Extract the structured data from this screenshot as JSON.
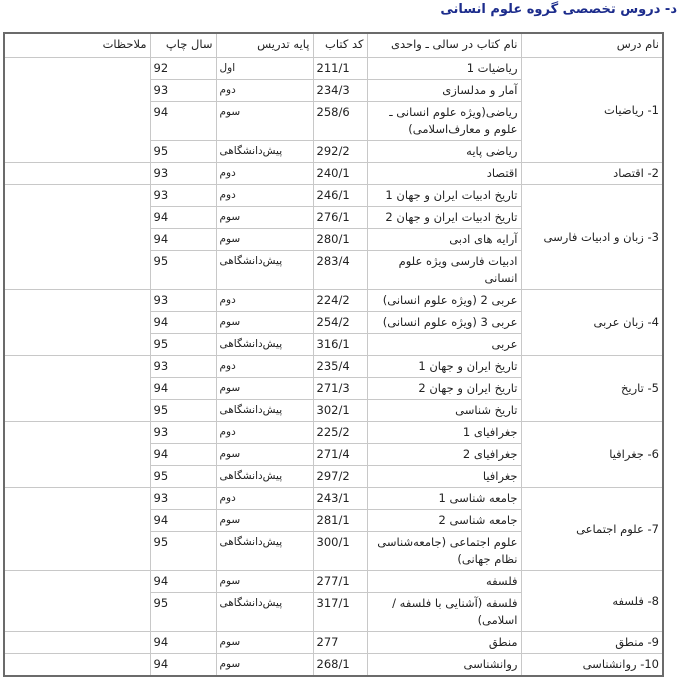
{
  "title": "د- دروس تخصصی گروه علوم انسانی",
  "headers": {
    "subject": "نام درس",
    "book": "نام کتاب در سالی ـ واحدی",
    "code": "کد کتاب",
    "grade": "پایه تدریس",
    "year": "سال چاپ",
    "notes": "ملاحظات"
  },
  "groups": [
    {
      "subject": "1- ریاضیات",
      "rows": [
        {
          "book": "ریاضیات 1",
          "code": "211/1",
          "grade": "اول",
          "year": "92"
        },
        {
          "book": "آمار و مدلسازی",
          "code": "234/3",
          "grade": "دوم",
          "year": "93"
        },
        {
          "book": "ریاضی(ویژه علوم انسانی ـ علوم و معارف‌اسلامی)",
          "code": "258/6",
          "grade": "سوم",
          "year": "94"
        },
        {
          "book": "ریاضی پایه",
          "code": "292/2",
          "grade": "پیش‌دانشگاهی",
          "year": "95"
        }
      ]
    },
    {
      "subject": "2- اقتصاد",
      "rows": [
        {
          "book": "اقتصاد",
          "code": "240/1",
          "grade": "دوم",
          "year": "93"
        }
      ]
    },
    {
      "subject": "3- زبان و ادبیات فارسی",
      "rows": [
        {
          "book": "تاریخ ادبیات ایران و جهان 1",
          "code": "246/1",
          "grade": "دوم",
          "year": "93"
        },
        {
          "book": "تاریخ ادبیات ایران و جهان 2",
          "code": "276/1",
          "grade": "سوم",
          "year": "94"
        },
        {
          "book": "آرایه های ادبی",
          "code": "280/1",
          "grade": "سوم",
          "year": "94"
        },
        {
          "book": "ادبیات فارسی ویژه علوم انسانی",
          "code": "283/4",
          "grade": "پیش‌دانشگاهی",
          "year": "95"
        }
      ]
    },
    {
      "subject": "4- زبان عربی",
      "rows": [
        {
          "book": "عربی 2 (ویژه علوم انسانی)",
          "code": "224/2",
          "grade": "دوم",
          "year": "93"
        },
        {
          "book": "عربی 3 (ویژه علوم انسانی)",
          "code": "254/2",
          "grade": "سوم",
          "year": "94"
        },
        {
          "book": "عربی",
          "code": "316/1",
          "grade": "پیش‌دانشگاهی",
          "year": "95"
        }
      ]
    },
    {
      "subject": "5- تاریخ",
      "rows": [
        {
          "book": "تاریخ ایران و جهان 1",
          "code": "235/4",
          "grade": "دوم",
          "year": "93"
        },
        {
          "book": "تاریخ ایران و جهان 2",
          "code": "271/3",
          "grade": "سوم",
          "year": "94"
        },
        {
          "book": "تاریخ شناسی",
          "code": "302/1",
          "grade": "پیش‌دانشگاهی",
          "year": "95"
        }
      ]
    },
    {
      "subject": "6- جغرافیا",
      "rows": [
        {
          "book": "جغرافیای 1",
          "code": "225/2",
          "grade": "دوم",
          "year": "93"
        },
        {
          "book": "جغرافیای 2",
          "code": "271/4",
          "grade": "سوم",
          "year": "94"
        },
        {
          "book": "جغرافیا",
          "code": "297/2",
          "grade": "پیش‌دانشگاهی",
          "year": "95"
        }
      ]
    },
    {
      "subject": "7- علوم اجتماعی",
      "rows": [
        {
          "book": "جامعه شناسی 1",
          "code": "243/1",
          "grade": "دوم",
          "year": "93"
        },
        {
          "book": "جامعه شناسی 2",
          "code": "281/1",
          "grade": "سوم",
          "year": "94"
        },
        {
          "book": "علوم اجتماعی (جامعه‌شناسی نظام جهانی)",
          "code": "300/1",
          "grade": "پیش‌دانشگاهی",
          "year": "95"
        }
      ]
    },
    {
      "subject": "8- فلسفه",
      "rows": [
        {
          "book": "فلسفه",
          "code": "277/1",
          "grade": "سوم",
          "year": "94"
        },
        {
          "book": "فلسفه (آشنایی با فلسفه /اسلامی)",
          "code": "317/1",
          "grade": "پیش‌دانشگاهی",
          "year": "95"
        }
      ]
    },
    {
      "subject": "9- منطق",
      "rows": [
        {
          "book": "منطق",
          "code": "277",
          "grade": "سوم",
          "year": "94"
        }
      ]
    },
    {
      "subject": "10- روانشناسی",
      "rows": [
        {
          "book": "روانشناسی",
          "code": "268/1",
          "grade": "سوم",
          "year": "94"
        }
      ]
    }
  ]
}
